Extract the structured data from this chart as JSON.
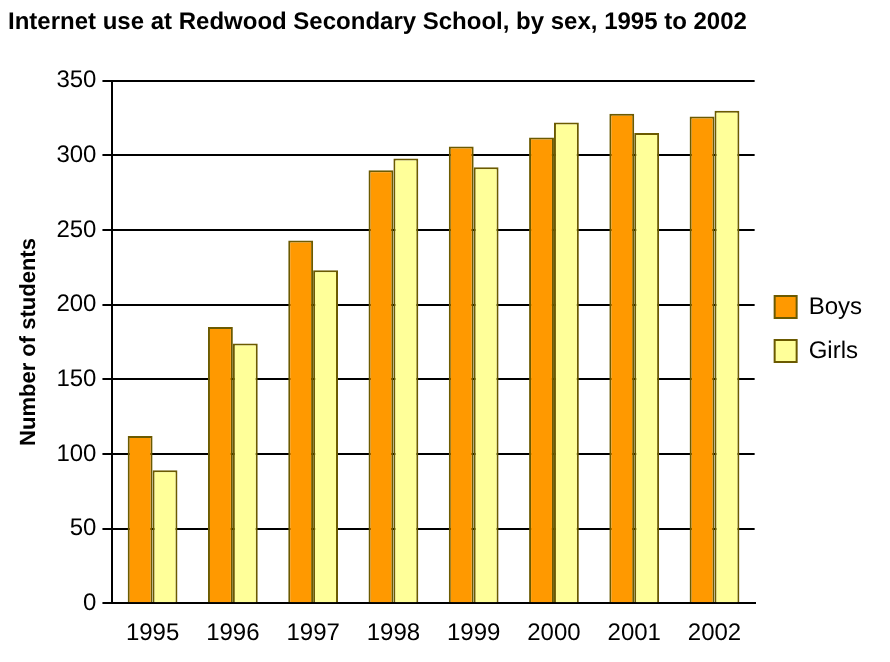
{
  "chart_data": {
    "type": "bar",
    "title": "Internet use at Redwood Secondary School, by sex, 1995 to 2002",
    "ylabel": "Number of students",
    "categories": [
      "1995",
      "1996",
      "1997",
      "1998",
      "1999",
      "2000",
      "2001",
      "2002"
    ],
    "series": [
      {
        "name": "Boys",
        "color": "#ff9900",
        "values": [
          112,
          185,
          243,
          290,
          306,
          312,
          328,
          326
        ]
      },
      {
        "name": "Girls",
        "color": "#ffff99",
        "values": [
          89,
          174,
          223,
          298,
          292,
          322,
          315,
          330
        ]
      }
    ],
    "ylim": [
      0,
      350
    ],
    "yticks": [
      0,
      50,
      100,
      150,
      200,
      250,
      300,
      350
    ],
    "grid": "y",
    "legend": "right"
  }
}
